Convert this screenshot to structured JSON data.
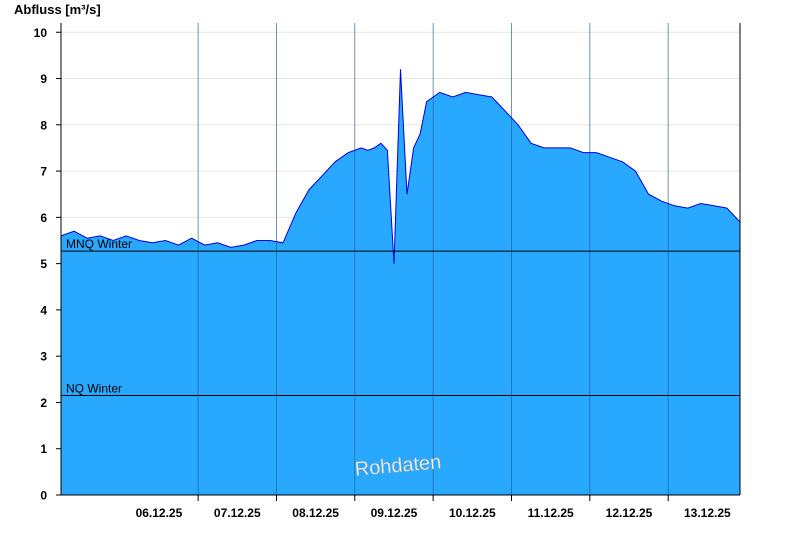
{
  "chart_data": {
    "type": "area",
    "ylabel": "Abfluss [m³/s]",
    "ylim": [
      0,
      10.2
    ],
    "y_ticks": [
      0,
      1,
      2,
      3,
      4,
      5,
      6,
      7,
      8,
      9,
      10
    ],
    "x_ticks": [
      "06.12.25",
      "07.12.25",
      "08.12.25",
      "09.12.25",
      "10.12.25",
      "11.12.25",
      "12.12.25",
      "13.12.25"
    ],
    "xlim": [
      "05.12.25 06:00",
      "13.12.25 22:00"
    ],
    "grid": "horizontal",
    "watermark": "Rohdaten",
    "reference_lines": [
      {
        "label": "MNQ Winter",
        "value": 5.27
      },
      {
        "label": "NQ Winter",
        "value": 2.15
      }
    ],
    "series": [
      {
        "color": "#0000dd",
        "fill_color": "#29a8ff",
        "x": [
          "05.12.25 06:00",
          "05.12.25 10:00",
          "05.12.25 14:00",
          "05.12.25 18:00",
          "05.12.25 22:00",
          "06.12.25 02:00",
          "06.12.25 06:00",
          "06.12.25 10:00",
          "06.12.25 14:00",
          "06.12.25 18:00",
          "06.12.25 22:00",
          "07.12.25 02:00",
          "07.12.25 06:00",
          "07.12.25 10:00",
          "07.12.25 14:00",
          "07.12.25 18:00",
          "07.12.25 22:00",
          "08.12.25 02:00",
          "08.12.25 06:00",
          "08.12.25 10:00",
          "08.12.25 14:00",
          "08.12.25 18:00",
          "08.12.25 22:00",
          "09.12.25 02:00",
          "09.12.25 04:00",
          "09.12.25 06:00",
          "09.12.25 08:00",
          "09.12.25 10:00",
          "09.12.25 12:00",
          "09.12.25 14:00",
          "09.12.25 16:00",
          "09.12.25 18:00",
          "09.12.25 20:00",
          "09.12.25 22:00",
          "10.12.25 02:00",
          "10.12.25 06:00",
          "10.12.25 10:00",
          "10.12.25 14:00",
          "10.12.25 18:00",
          "10.12.25 22:00",
          "11.12.25 02:00",
          "11.12.25 06:00",
          "11.12.25 10:00",
          "11.12.25 14:00",
          "11.12.25 18:00",
          "11.12.25 22:00",
          "12.12.25 02:00",
          "12.12.25 06:00",
          "12.12.25 10:00",
          "12.12.25 14:00",
          "12.12.25 18:00",
          "12.12.25 22:00",
          "13.12.25 02:00",
          "13.12.25 06:00",
          "13.12.25 10:00",
          "13.12.25 14:00",
          "13.12.25 18:00",
          "13.12.25 22:00"
        ],
        "y": [
          5.6,
          5.7,
          5.55,
          5.6,
          5.5,
          5.6,
          5.5,
          5.45,
          5.5,
          5.4,
          5.55,
          5.4,
          5.45,
          5.35,
          5.4,
          5.5,
          5.5,
          5.45,
          6.1,
          6.6,
          6.9,
          7.2,
          7.4,
          7.5,
          7.45,
          7.5,
          7.6,
          7.45,
          5.0,
          9.2,
          6.5,
          7.5,
          7.8,
          8.5,
          8.7,
          8.6,
          8.7,
          8.65,
          8.6,
          8.3,
          8.0,
          7.6,
          7.5,
          7.5,
          7.5,
          7.4,
          7.4,
          7.3,
          7.2,
          7.0,
          6.5,
          6.35,
          6.25,
          6.2,
          6.3,
          6.25,
          6.2,
          5.9
        ]
      }
    ]
  }
}
